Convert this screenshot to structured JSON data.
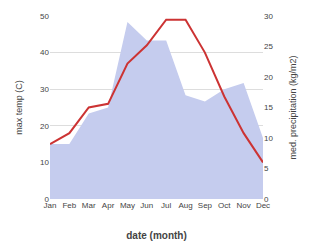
{
  "chart_data": {
    "type": "line",
    "categories": [
      "Jan",
      "Feb",
      "Mar",
      "Apr",
      "May",
      "Jun",
      "Jul",
      "Aug",
      "Sep",
      "Oct",
      "Nov",
      "Dec"
    ],
    "xlabel": "date (month)",
    "ylabel": "max temp (C)",
    "y2label": "med. precipitation (kg/m2)",
    "series": [
      {
        "type": "area",
        "axis": "y2",
        "color": "#c5ccee",
        "values": [
          9,
          9,
          14,
          15,
          29,
          26,
          26,
          17,
          16,
          18,
          19,
          10
        ]
      },
      {
        "type": "line",
        "color": "#cc3333",
        "values": [
          15,
          18,
          25,
          26,
          37,
          42,
          49,
          49,
          40,
          28,
          18,
          10
        ]
      }
    ],
    "ylim": [
      0,
      50
    ],
    "yticks": [
      0,
      10,
      20,
      30,
      40,
      50
    ],
    "y2lim": [
      0,
      30
    ],
    "y2ticks": [
      0,
      5,
      10,
      15,
      20,
      25,
      30
    ],
    "grid": true
  }
}
